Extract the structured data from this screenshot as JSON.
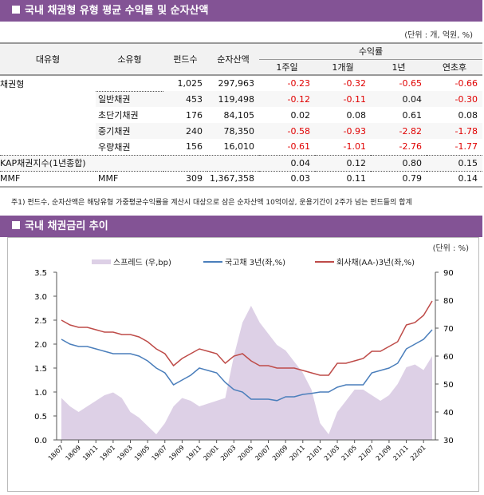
{
  "section1": {
    "title": "국내 채권형 유형 평균 수익률 및 순자산액",
    "unit": "(단위 : 개, 억원, %)"
  },
  "table": {
    "headers": {
      "major": "대유형",
      "minor": "소유형",
      "funds": "펀드수",
      "assets": "순자산액",
      "returns": "수익률",
      "w1": "1주일",
      "m1": "1개월",
      "y1": "1년",
      "ytd": "연초후"
    },
    "rows": [
      {
        "major": "채권형",
        "minor": "",
        "funds": "1,025",
        "assets": "297,963",
        "w1": "-0.23",
        "m1": "-0.32",
        "y1": "-0.65",
        "ytd": "-0.66"
      },
      {
        "major": "",
        "minor": "일반채권",
        "funds": "453",
        "assets": "119,498",
        "w1": "-0.12",
        "m1": "-0.11",
        "y1": "0.04",
        "ytd": "-0.30"
      },
      {
        "major": "",
        "minor": "초단기채권",
        "funds": "176",
        "assets": "84,105",
        "w1": "0.02",
        "m1": "0.08",
        "y1": "0.61",
        "ytd": "0.08"
      },
      {
        "major": "",
        "minor": "중기채권",
        "funds": "240",
        "assets": "78,350",
        "w1": "-0.58",
        "m1": "-0.93",
        "y1": "-2.82",
        "ytd": "-1.78"
      },
      {
        "major": "",
        "minor": "우량채권",
        "funds": "156",
        "assets": "16,010",
        "w1": "-0.61",
        "m1": "-1.01",
        "y1": "-2.76",
        "ytd": "-1.77"
      },
      {
        "major": "KAP채권지수(1년종합)",
        "minor": "",
        "funds": "",
        "assets": "",
        "w1": "0.04",
        "m1": "0.12",
        "y1": "0.80",
        "ytd": "0.15"
      },
      {
        "major": "MMF",
        "minor": "MMF",
        "funds": "309",
        "assets": "1,367,358",
        "w1": "0.03",
        "m1": "0.11",
        "y1": "0.79",
        "ytd": "0.14"
      }
    ]
  },
  "note": "주1) 펀드수, 순자산액은 해당유형 가중평균수익률을 계산시 대상으로 삼은 순자산액 10억이상, 운용기간이 2주가 넘는 펀드들의 합계",
  "section2": {
    "title": "국내 채권금리 추이"
  },
  "chart_data": {
    "type": "line",
    "unit": "(단위 : %)",
    "x": [
      "18/07",
      "18/08",
      "18/09",
      "18/10",
      "18/11",
      "18/12",
      "19/01",
      "19/02",
      "19/03",
      "19/04",
      "19/05",
      "19/06",
      "19/07",
      "19/08",
      "19/09",
      "19/10",
      "19/11",
      "19/12",
      "20/01",
      "20/02",
      "20/03",
      "20/04",
      "20/05",
      "20/06",
      "20/07",
      "20/08",
      "20/09",
      "20/10",
      "20/11",
      "20/12",
      "21/01",
      "21/02",
      "21/03",
      "21/04",
      "21/05",
      "21/06",
      "21/07",
      "21/08",
      "21/09",
      "21/10",
      "21/11",
      "21/12",
      "22/01",
      "22/02"
    ],
    "xticks": [
      "18/07",
      "18/09",
      "18/11",
      "19/01",
      "19/03",
      "19/05",
      "19/07",
      "19/09",
      "19/11",
      "20/01",
      "20/03",
      "20/05",
      "20/07",
      "20/09",
      "20/11",
      "21/01",
      "21/03",
      "21/05",
      "21/07",
      "21/09",
      "21/11",
      "22/01"
    ],
    "yleft": {
      "ticks": [
        "0.0",
        "0.5",
        "1.0",
        "1.5",
        "2.0",
        "2.5",
        "3.0",
        "3.5"
      ],
      "range": [
        0,
        3.5
      ]
    },
    "yright": {
      "ticks": [
        "30",
        "40",
        "50",
        "60",
        "70",
        "80",
        "90"
      ],
      "range": [
        30,
        90
      ]
    },
    "series": [
      {
        "name": "스프레드 (우,bp)",
        "type": "area",
        "axis": "right",
        "color": "#ddd0e6",
        "values": [
          45,
          42,
          40,
          42,
          44,
          46,
          47,
          45,
          40,
          38,
          35,
          32,
          36,
          42,
          45,
          44,
          42,
          43,
          44,
          45,
          60,
          72,
          78,
          72,
          68,
          64,
          62,
          58,
          54,
          48,
          36,
          32,
          40,
          44,
          48,
          48,
          46,
          44,
          46,
          50,
          56,
          57,
          55,
          60
        ]
      },
      {
        "name": "국고채 3년(좌,%)",
        "type": "line",
        "axis": "left",
        "color": "#4a7ebb",
        "values": [
          2.1,
          2.0,
          1.95,
          1.95,
          1.9,
          1.85,
          1.8,
          1.8,
          1.8,
          1.75,
          1.65,
          1.5,
          1.4,
          1.15,
          1.25,
          1.35,
          1.5,
          1.45,
          1.4,
          1.2,
          1.05,
          1.0,
          0.85,
          0.85,
          0.85,
          0.82,
          0.9,
          0.9,
          0.95,
          0.97,
          1.0,
          1.0,
          1.1,
          1.15,
          1.15,
          1.15,
          1.4,
          1.45,
          1.5,
          1.6,
          1.9,
          2.0,
          2.1,
          2.3
        ]
      },
      {
        "name": "회사채(AA-)3년(좌,%)",
        "type": "line",
        "axis": "left",
        "color": "#be4b48",
        "values": [
          2.5,
          2.4,
          2.35,
          2.35,
          2.3,
          2.25,
          2.25,
          2.2,
          2.2,
          2.15,
          2.05,
          1.9,
          1.8,
          1.55,
          1.7,
          1.8,
          1.9,
          1.85,
          1.8,
          1.6,
          1.75,
          1.8,
          1.65,
          1.55,
          1.55,
          1.5,
          1.5,
          1.5,
          1.45,
          1.4,
          1.35,
          1.35,
          1.6,
          1.6,
          1.65,
          1.7,
          1.85,
          1.85,
          1.95,
          2.05,
          2.4,
          2.45,
          2.6,
          2.9
        ]
      }
    ]
  }
}
